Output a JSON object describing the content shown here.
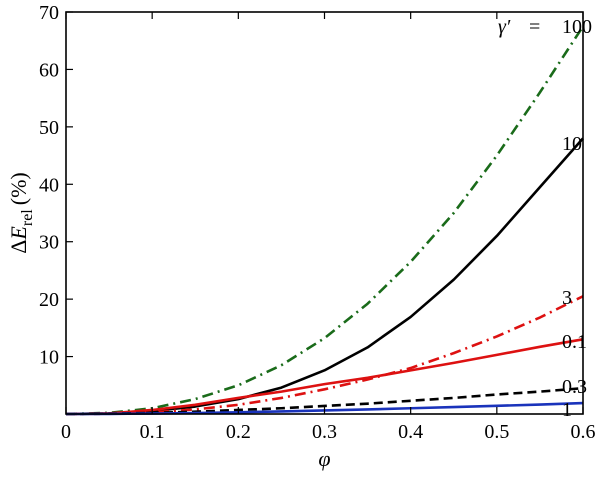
{
  "chart_data": {
    "type": "line",
    "title": "",
    "xlabel": "φ",
    "ylabel": {
      "prefix": "Δ",
      "symbol": "E",
      "subscript": "rel",
      "unit": "(%)"
    },
    "xlim": [
      0,
      0.6
    ],
    "ylim": [
      0,
      70
    ],
    "xticks": [
      0,
      0.1,
      0.2,
      0.3,
      0.4,
      0.5,
      0.6
    ],
    "xtick_labels": [
      "0",
      "0.1",
      "0.2",
      "0.3",
      "0.4",
      "0.5",
      "0.6"
    ],
    "yticks": [
      10,
      20,
      30,
      40,
      50,
      60,
      70
    ],
    "ytick_labels": [
      "10",
      "20",
      "30",
      "40",
      "50",
      "60",
      "70"
    ],
    "grid": false,
    "legend": "none",
    "annotation": {
      "text": "γ′",
      "equals": "="
    },
    "x": [
      0,
      0.05,
      0.1,
      0.15,
      0.2,
      0.25,
      0.3,
      0.35,
      0.4,
      0.45,
      0.5,
      0.55,
      0.6
    ],
    "series": [
      {
        "label": "100",
        "color": "#1a6b1a",
        "dash": "dashdot",
        "values": [
          0,
          0.2,
          1.0,
          2.6,
          5.0,
          8.5,
          13.2,
          19.2,
          26.5,
          35.0,
          45.0,
          56.0,
          67.5
        ]
      },
      {
        "label": "10",
        "color": "#000000",
        "dash": "solid",
        "values": [
          0,
          0.1,
          0.5,
          1.3,
          2.6,
          4.6,
          7.6,
          11.6,
          16.9,
          23.4,
          31.0,
          39.5,
          48.0
        ]
      },
      {
        "label": "3",
        "color": "#dd1111",
        "dash": "dashdot",
        "values": [
          0,
          0.05,
          0.3,
          0.8,
          1.6,
          2.8,
          4.3,
          6.0,
          8.0,
          10.6,
          13.5,
          16.8,
          20.5
        ]
      },
      {
        "label": "0.1",
        "color": "#dd1111",
        "dash": "solid",
        "values": [
          0,
          0.1,
          0.7,
          1.6,
          2.8,
          3.9,
          5.2,
          6.3,
          7.6,
          8.9,
          10.3,
          11.7,
          13.0
        ]
      },
      {
        "label": "0.3",
        "color": "#000000",
        "dash": "dashed",
        "values": [
          0,
          0.05,
          0.2,
          0.4,
          0.7,
          1.0,
          1.4,
          1.8,
          2.3,
          2.8,
          3.4,
          3.9,
          4.5
        ]
      },
      {
        "label": "1",
        "color": "#1a33bb",
        "dash": "solid",
        "values": [
          0,
          0.02,
          0.08,
          0.17,
          0.3,
          0.45,
          0.62,
          0.8,
          1.0,
          1.2,
          1.42,
          1.65,
          1.9
        ]
      }
    ]
  }
}
